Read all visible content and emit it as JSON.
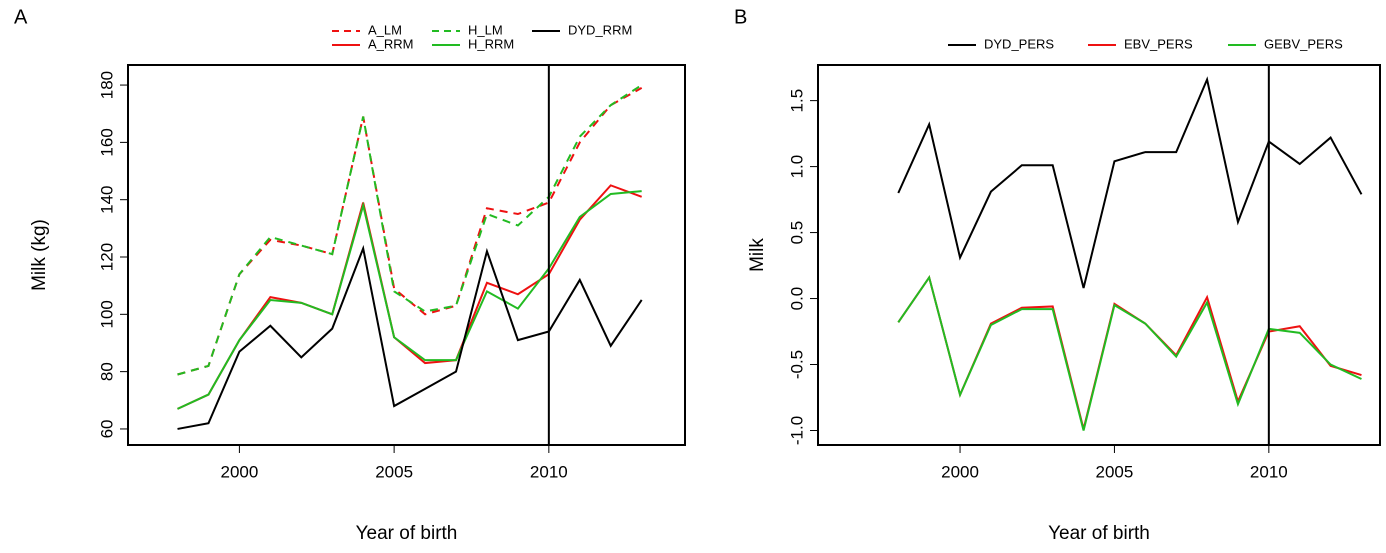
{
  "chart_data": [
    {
      "type": "line",
      "panel_label": "A",
      "x_label": "Year of birth",
      "y_label": "Milk (kg)",
      "x": [
        1998,
        1999,
        2000,
        2001,
        2002,
        2003,
        2004,
        2005,
        2006,
        2007,
        2008,
        2009,
        2010,
        2011,
        2012,
        2013
      ],
      "xlim": [
        1996.4,
        2014.4
      ],
      "xticks": [
        2000,
        2005,
        2010
      ],
      "ylim": [
        54.4,
        187
      ],
      "yticks": [
        60,
        80,
        100,
        120,
        140,
        160,
        180
      ],
      "vline": 2010,
      "legend_columns": 3,
      "series": [
        {
          "name": "A_LM",
          "color": "#ee1111",
          "linestyle": "dashed",
          "values": [
            79,
            82,
            114,
            126,
            124,
            121,
            169,
            109,
            100,
            103,
            137,
            135,
            139,
            160,
            173,
            179
          ]
        },
        {
          "name": "A_RRM",
          "color": "#ee1111",
          "linestyle": "solid",
          "values": [
            67,
            72,
            91,
            106,
            104,
            100,
            139,
            92,
            83,
            84,
            111,
            107,
            114,
            133,
            145,
            141
          ]
        },
        {
          "name": "H_LM",
          "color": "#22bb22",
          "linestyle": "dashed",
          "values": [
            79,
            82,
            114,
            127,
            124,
            121,
            169,
            108,
            101,
            103,
            135,
            131,
            141,
            162,
            173,
            180
          ]
        },
        {
          "name": "H_RRM",
          "color": "#22bb22",
          "linestyle": "solid",
          "values": [
            67,
            72,
            91,
            105,
            104,
            100,
            138,
            92,
            84,
            84,
            108,
            102,
            116,
            134,
            142,
            143
          ]
        },
        {
          "name": "DYD_RRM",
          "color": "#000000",
          "linestyle": "solid",
          "values": [
            60,
            62,
            87,
            96,
            85,
            95,
            123,
            68,
            74,
            80,
            122,
            91,
            94,
            112,
            89,
            105
          ]
        }
      ]
    },
    {
      "type": "line",
      "panel_label": "B",
      "x_label": "Year of birth",
      "y_label": "Milk",
      "x": [
        1998,
        1999,
        2000,
        2001,
        2002,
        2003,
        2004,
        2005,
        2006,
        2007,
        2008,
        2009,
        2010,
        2011,
        2012,
        2013
      ],
      "xlim": [
        1995.4,
        2013.6
      ],
      "xticks": [
        2000,
        2005,
        2010
      ],
      "ylim": [
        -1.11,
        1.77
      ],
      "yticks": [
        {
          "value": -1,
          "label": "-1.0"
        },
        -0.5,
        {
          "value": 0,
          "label": "0.0"
        },
        0.5,
        {
          "value": 1,
          "label": "1.0"
        },
        1.5
      ],
      "vline": 2010,
      "legend_columns": 3,
      "series": [
        {
          "name": "DYD_PERS",
          "color": "#000000",
          "linestyle": "solid",
          "values": [
            0.8,
            1.32,
            0.31,
            0.81,
            1.01,
            1.01,
            0.08,
            1.04,
            1.11,
            1.11,
            1.66,
            0.58,
            1.19,
            1.02,
            1.22,
            0.79
          ]
        },
        {
          "name": "EBV_PERS",
          "color": "#ee1111",
          "linestyle": "solid",
          "values": [
            -0.18,
            0.16,
            -0.73,
            -0.19,
            -0.07,
            -0.06,
            -0.99,
            -0.04,
            -0.19,
            -0.43,
            0.01,
            -0.78,
            -0.25,
            -0.21,
            -0.51,
            -0.58
          ]
        },
        {
          "name": "GEBV_PERS",
          "color": "#22bb22",
          "linestyle": "solid",
          "values": [
            -0.18,
            0.16,
            -0.73,
            -0.2,
            -0.08,
            -0.08,
            -1.0,
            -0.05,
            -0.19,
            -0.44,
            -0.03,
            -0.8,
            -0.23,
            -0.26,
            -0.5,
            -0.61
          ]
        }
      ]
    }
  ]
}
